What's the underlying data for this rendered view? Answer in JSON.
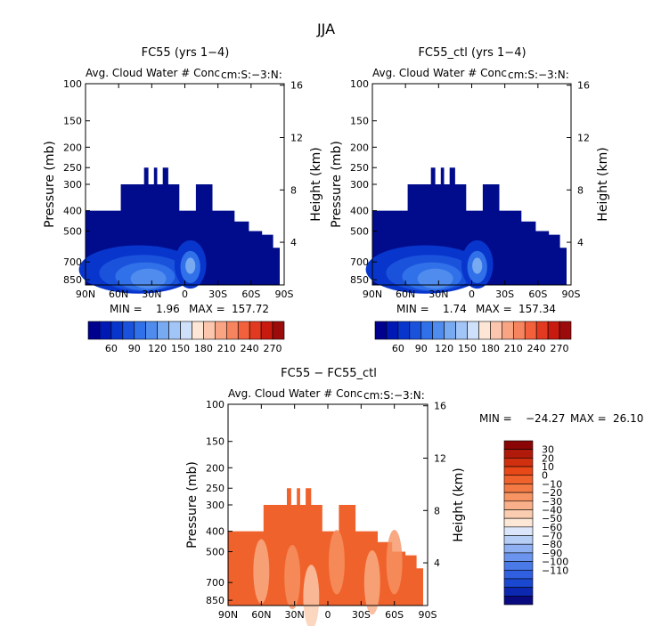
{
  "main_title": "JJA",
  "colors": {
    "deep_blue": "#000c8c",
    "blue_palette": [
      "#00008f",
      "#0018b4",
      "#0836cc",
      "#1a52dc",
      "#3070e8",
      "#4f8ced",
      "#78aaf2",
      "#a2c5f7",
      "#cfe0fb",
      "#fde6d6",
      "#fbc6ad",
      "#f9a584",
      "#f6845f",
      "#f2603c",
      "#e23a20",
      "#c91a10",
      "#9b0b0b"
    ],
    "diff_palette": [
      "#0a0a80",
      "#0c28b0",
      "#1a48d0",
      "#3060e0",
      "#4a7ae8",
      "#6a94ee",
      "#8eb0f2",
      "#b6cdf6",
      "#dce6fb",
      "#fde8d8",
      "#fbcdb0",
      "#f9b08a",
      "#f69464",
      "#f37a44",
      "#f0622c",
      "#e84818",
      "#d03010",
      "#b01a0a",
      "#8a0606"
    ],
    "diff_fill": "#f0622c"
  },
  "chart_data": [
    {
      "type": "heatmap",
      "title": "FC55 (yrs 1−4)",
      "subtitle": "Avg. Cloud Water # Conc",
      "region_label": "cm:S:−3:N:",
      "xlabel": "",
      "ylabel": "Pressure (mb)",
      "y2label": "Height (km)",
      "x_ticks": [
        "90N",
        "60N",
        "30N",
        "0",
        "30S",
        "60S",
        "90S"
      ],
      "y_ticks": [
        "100",
        "150",
        "200",
        "250",
        "300",
        "400",
        "500",
        "700",
        "850"
      ],
      "y2_ticks": [
        "16",
        "12",
        "8",
        "4"
      ],
      "min_label": "MIN = ",
      "min": "1.96",
      "max_label": "MAX = ",
      "max": "157.72"
    },
    {
      "type": "heatmap",
      "title": "FC55_ctl (yrs 1−4)",
      "subtitle": "Avg. Cloud Water # Conc",
      "region_label": "cm:S:−3:N:",
      "xlabel": "",
      "ylabel": "Pressure (mb)",
      "y2label": "Height (km)",
      "x_ticks": [
        "90N",
        "60N",
        "30N",
        "0",
        "30S",
        "60S",
        "90S"
      ],
      "y_ticks": [
        "100",
        "150",
        "200",
        "250",
        "300",
        "400",
        "500",
        "700",
        "850"
      ],
      "y2_ticks": [
        "16",
        "12",
        "8",
        "4"
      ],
      "min_label": "MIN = ",
      "min": "1.74",
      "max_label": "MAX = ",
      "max": "157.34"
    },
    {
      "type": "heatmap",
      "title": "FC55 − FC55_ctl",
      "subtitle": "Avg. Cloud Water # Conc",
      "region_label": "cm:S:−3:N:",
      "xlabel": "",
      "ylabel": "Pressure (mb)",
      "y2label": "Height (km)",
      "x_ticks": [
        "90N",
        "60N",
        "30N",
        "0",
        "30S",
        "60S",
        "90S"
      ],
      "y_ticks": [
        "100",
        "150",
        "200",
        "250",
        "300",
        "400",
        "500",
        "700",
        "850"
      ],
      "y2_ticks": [
        "16",
        "12",
        "8",
        "4"
      ],
      "min_label": "MIN = ",
      "min": "−24.27",
      "max_label": "MAX = ",
      "max": "26.10"
    }
  ],
  "colorbar_top": {
    "labels": [
      "60",
      "90",
      "120",
      "150",
      "180",
      "210",
      "240",
      "270"
    ]
  },
  "colorbar_diff": {
    "labels": [
      "30",
      "20",
      "10",
      "0",
      "−10",
      "−20",
      "−30",
      "−40",
      "−50",
      "−60",
      "−70",
      "−80",
      "−90",
      "−100",
      "−110"
    ]
  }
}
